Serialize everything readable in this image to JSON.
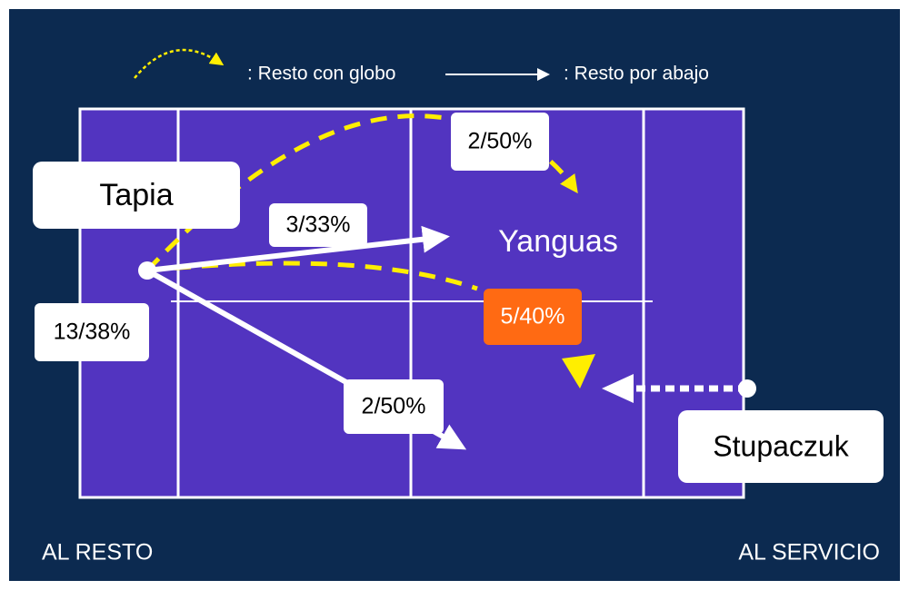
{
  "legend": {
    "lob": ": Resto con globo",
    "low": ": Resto por abajo"
  },
  "players": {
    "returner": "Tapia",
    "net": "Yanguas",
    "server": "Stupaczuk"
  },
  "stats": {
    "total": "13/38%",
    "low_cross": "3/33%",
    "lob_cross": "2/50%",
    "lob_middle": "5/40%",
    "low_down": "2/50%"
  },
  "footer": {
    "left": "AL RESTO",
    "right": "AL SERVICIO"
  }
}
